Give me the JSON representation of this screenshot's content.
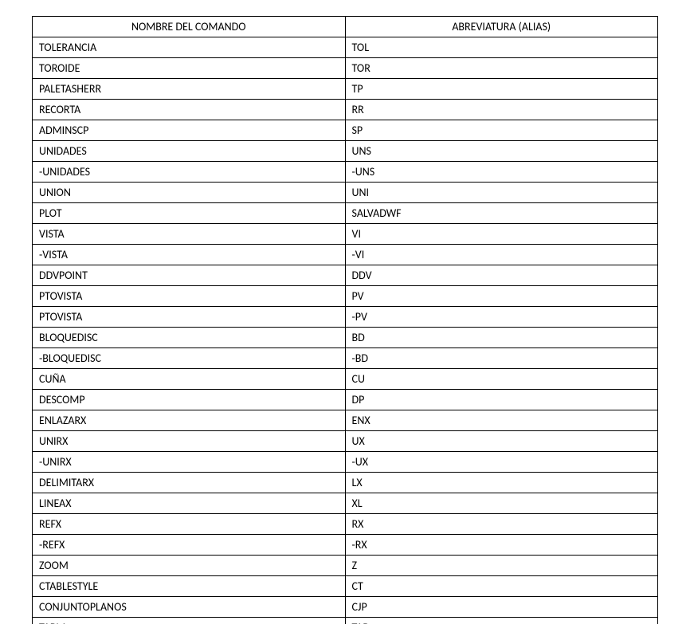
{
  "table": {
    "headers": {
      "command": "NOMBRE DEL COMANDO",
      "alias": "ABREVIATURA (ALIAS)"
    },
    "rows": [
      {
        "command": "TOLERANCIA",
        "alias": "TOL"
      },
      {
        "command": "TOROIDE",
        "alias": "TOR"
      },
      {
        "command": "PALETASHERR",
        "alias": "TP"
      },
      {
        "command": "RECORTA",
        "alias": "RR"
      },
      {
        "command": "ADMINSCP",
        "alias": "SP"
      },
      {
        "command": "UNIDADES",
        "alias": "UNS"
      },
      {
        "command": "-UNIDADES",
        "alias": "-UNS"
      },
      {
        "command": "UNION",
        "alias": "UNI"
      },
      {
        "command": "PLOT",
        "alias": "SALVADWF"
      },
      {
        "command": "VISTA",
        "alias": "VI"
      },
      {
        "command": "-VISTA",
        "alias": "-VI"
      },
      {
        "command": "DDVPOINT",
        "alias": "DDV"
      },
      {
        "command": "PTOVISTA",
        "alias": "PV"
      },
      {
        "command": "PTOVISTA",
        "alias": "-PV"
      },
      {
        "command": "BLOQUEDISC",
        "alias": "BD"
      },
      {
        "command": "-BLOQUEDISC",
        "alias": "-BD"
      },
      {
        "command": "CUÑA",
        "alias": "CU"
      },
      {
        "command": "DESCOMP",
        "alias": "DP"
      },
      {
        "command": "ENLAZARX",
        "alias": "ENX"
      },
      {
        "command": "UNIRX",
        "alias": "UX"
      },
      {
        "command": "-UNIRX",
        "alias": "-UX"
      },
      {
        "command": "DELIMITARX",
        "alias": "LX"
      },
      {
        "command": "LINEAX",
        "alias": "XL"
      },
      {
        "command": "REFX",
        "alias": "RX"
      },
      {
        "command": "-REFX",
        "alias": "-RX"
      },
      {
        "command": "ZOOM",
        "alias": "Z"
      },
      {
        "command": "CTABLESTYLE",
        "alias": "CT"
      },
      {
        "command": "CONJUNTOPLANOS",
        "alias": "CJP"
      },
      {
        "command": "TABLA",
        "alias": "TAB"
      }
    ],
    "styling": {
      "border_color": "#000000",
      "background_color": "#ffffff",
      "text_color": "#000000",
      "font_family": "Calibri",
      "font_size_pt": 11,
      "header_align": "center",
      "cell_align": "left",
      "column_widths_percent": [
        50,
        50
      ]
    }
  }
}
